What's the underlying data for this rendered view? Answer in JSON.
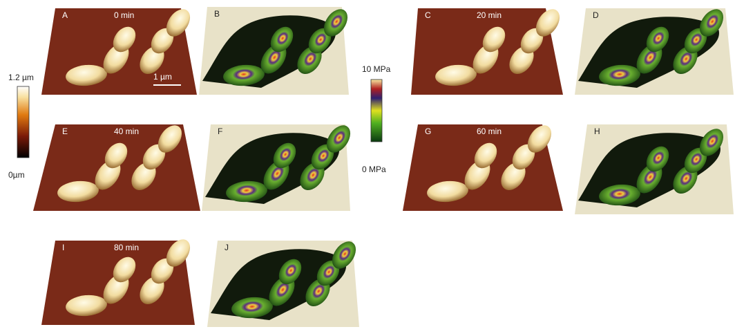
{
  "panels": [
    {
      "label": "A",
      "time": "0 min"
    },
    {
      "label": "B"
    },
    {
      "label": "C",
      "time": "20 min"
    },
    {
      "label": "D"
    },
    {
      "label": "E",
      "time": "40 min"
    },
    {
      "label": "F"
    },
    {
      "label": "G",
      "time": "60 min"
    },
    {
      "label": "H"
    },
    {
      "label": "I",
      "time": "80 min"
    },
    {
      "label": "J"
    }
  ],
  "scale_bar": "1 µm",
  "height_colorbar": {
    "max": "1.2 µm",
    "min": "0µm"
  },
  "modulus_colorbar": {
    "max": "10 MPa",
    "min": "0 MPa"
  }
}
